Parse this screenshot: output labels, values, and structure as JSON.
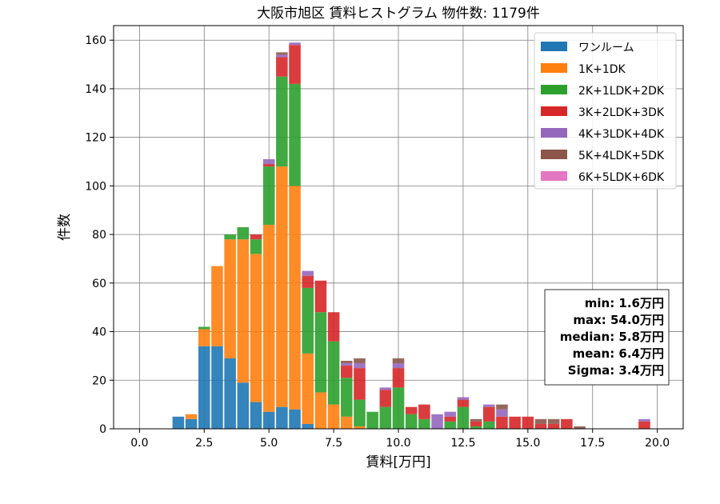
{
  "chart_data": {
    "type": "bar",
    "stacked": true,
    "title": "大阪市旭区 賃料ヒストグラム  物件数: 1179件",
    "xlabel": "賃料[万円]",
    "ylabel": "件数",
    "xlim": [
      -1.0,
      21.0
    ],
    "ylim": [
      0,
      166
    ],
    "x_ticks": [
      0.0,
      2.5,
      5.0,
      7.5,
      10.0,
      12.5,
      15.0,
      17.5,
      20.0
    ],
    "x_tick_labels": [
      "0.0",
      "2.5",
      "5.0",
      "7.5",
      "10.0",
      "12.5",
      "15.0",
      "17.5",
      "20.0"
    ],
    "y_ticks": [
      0,
      20,
      40,
      60,
      80,
      100,
      120,
      140,
      160
    ],
    "y_tick_labels": [
      "0",
      "20",
      "40",
      "60",
      "80",
      "100",
      "120",
      "140",
      "160"
    ],
    "bin_width": 0.5,
    "grid": true,
    "legend_position": "top-right",
    "x": [
      1.5,
      2.0,
      2.5,
      3.0,
      3.5,
      4.0,
      4.5,
      5.0,
      5.5,
      6.0,
      6.5,
      7.0,
      7.5,
      8.0,
      8.5,
      9.0,
      9.5,
      10.0,
      10.5,
      11.0,
      11.5,
      12.0,
      12.5,
      13.0,
      13.5,
      14.0,
      14.5,
      15.0,
      15.5,
      16.0,
      16.5,
      17.0,
      17.5,
      18.0,
      18.5,
      19.0,
      19.5,
      20.0
    ],
    "series": [
      {
        "name": "ワンルーム",
        "color": "#1f77b4",
        "values": [
          5,
          4,
          34,
          34,
          29,
          19,
          11,
          7,
          9,
          8,
          2,
          0,
          0,
          0,
          0,
          0,
          0,
          0,
          0,
          0,
          0,
          0,
          0,
          0,
          0,
          0,
          0,
          0,
          0,
          0,
          0,
          0,
          0,
          0,
          0,
          0,
          0,
          0
        ]
      },
      {
        "name": "1K+1DK",
        "color": "#ff7f0e",
        "values": [
          0,
          2,
          7,
          33,
          49,
          59,
          61,
          77,
          99,
          92,
          29,
          15,
          10,
          5,
          1,
          0,
          0,
          0,
          0,
          0,
          0,
          0,
          0,
          0,
          0,
          0,
          0,
          0,
          0,
          0,
          0,
          0,
          0,
          0,
          0,
          0,
          0,
          0
        ]
      },
      {
        "name": "2K+1LDK+2DK",
        "color": "#2ca02c",
        "values": [
          0,
          0,
          1,
          0,
          2,
          5,
          6,
          24,
          37,
          42,
          27,
          33,
          26,
          16,
          11,
          7,
          9,
          17,
          6,
          4,
          0,
          3,
          9,
          1,
          3,
          0,
          0,
          0,
          0,
          0,
          0,
          0,
          0,
          0,
          0,
          0,
          0,
          0
        ]
      },
      {
        "name": "3K+2LDK+3DK",
        "color": "#d62728",
        "values": [
          0,
          0,
          0,
          0,
          0,
          0,
          2,
          1,
          8,
          16,
          5,
          13,
          12,
          5,
          13,
          0,
          7,
          8,
          3,
          6,
          0,
          2,
          3,
          2,
          6,
          5,
          5,
          5,
          2,
          2,
          4,
          0,
          0,
          0,
          0,
          0,
          3,
          0
        ]
      },
      {
        "name": "4K+3LDK+4DK",
        "color": "#9467bd",
        "values": [
          0,
          0,
          0,
          0,
          0,
          0,
          0,
          2,
          1,
          1,
          2,
          0,
          0,
          1,
          2,
          0,
          1,
          2,
          0,
          0,
          6,
          2,
          1,
          0,
          1,
          3,
          0,
          0,
          0,
          0,
          0,
          0,
          0,
          0,
          0,
          0,
          1,
          0
        ]
      },
      {
        "name": "5K+4LDK+5DK",
        "color": "#8c564b",
        "values": [
          0,
          0,
          0,
          0,
          0,
          0,
          0,
          0,
          1,
          0,
          0,
          0,
          0,
          1,
          2,
          0,
          0,
          2,
          0,
          0,
          0,
          0,
          0,
          1,
          0,
          2,
          0,
          0,
          2,
          2,
          0,
          1,
          0,
          0,
          0,
          0,
          0,
          0
        ]
      },
      {
        "name": "6K+5LDK+6DK",
        "color": "#e377c2",
        "values": [
          0,
          0,
          0,
          0,
          0,
          0,
          0,
          0,
          0,
          0,
          0,
          0,
          0,
          0,
          0,
          0,
          0,
          0,
          0,
          0,
          0,
          0,
          0,
          0,
          0,
          0,
          0,
          0,
          0,
          0,
          0,
          0,
          0,
          0,
          0,
          0,
          0,
          0
        ]
      }
    ],
    "stats": [
      "min: 1.6万円",
      "max: 54.0万円",
      "median: 5.8万円",
      "mean: 6.4万円",
      "Sigma: 3.4万円"
    ]
  }
}
